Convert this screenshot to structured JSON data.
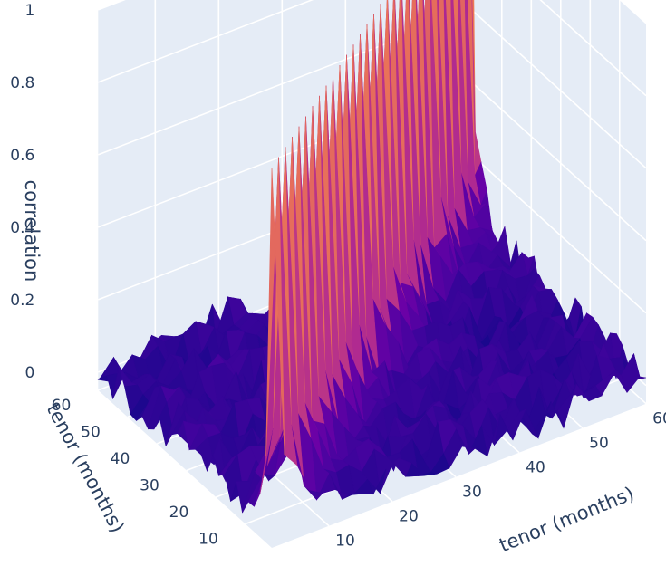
{
  "chart_data": {
    "type": "surface",
    "title": "",
    "x_axis": {
      "label": "tenor (months)",
      "range": [
        1,
        60
      ],
      "ticks": [
        "10",
        "20",
        "30",
        "40",
        "50",
        "60"
      ]
    },
    "y_axis": {
      "label": "tenor (months)",
      "range": [
        1,
        60
      ],
      "ticks": [
        "10",
        "20",
        "30",
        "40",
        "50",
        "60"
      ]
    },
    "z_axis": {
      "label": "correlation",
      "range": [
        -0.05,
        1
      ],
      "ticks": [
        "0",
        "0.2",
        "0.4",
        "0.6",
        "0.8",
        "1"
      ]
    },
    "surface": {
      "description_values": {
        "diagonal_value": 1,
        "near_diagonal_decay_months": 3,
        "off_diagonal_level": 0.02,
        "off_diagonal_noise": 0.06
      },
      "colorscale": [
        "#0d0887",
        "#46039f",
        "#7201a8",
        "#9c179e",
        "#bd3786",
        "#d8576b",
        "#ed7953",
        "#fb9f3a",
        "#fdca26",
        "#f0f921"
      ]
    },
    "grid": true,
    "scene_background": "#e5ecf6"
  }
}
